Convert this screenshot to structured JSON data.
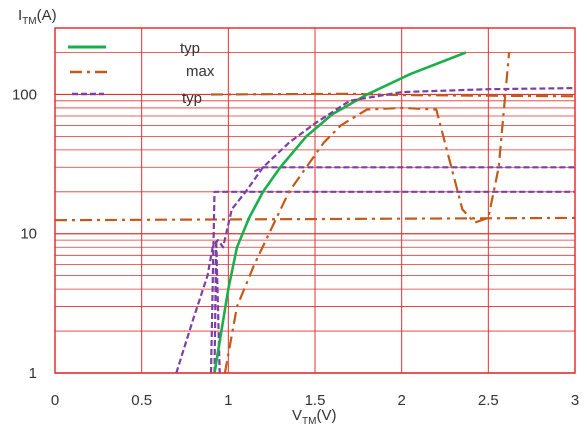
{
  "chart_data": {
    "type": "line",
    "xlabel": {
      "main": "V",
      "sub": "TM",
      "unit": "(V)"
    },
    "ylabel": {
      "main": "I",
      "sub": "TM",
      "unit": "(A)"
    },
    "xlim": [
      0,
      3
    ],
    "ylim": [
      1,
      300
    ],
    "yscale": "log",
    "grid": true,
    "x_ticks": [
      0,
      0.5,
      1,
      1.5,
      2,
      2.5,
      3
    ],
    "x_tick_labels": [
      "0",
      "0.5",
      "1",
      "1.5",
      "2",
      "2.5",
      "3"
    ],
    "y_ticks": [
      1,
      10,
      100
    ],
    "y_tick_labels": [
      "1",
      "10",
      "100"
    ],
    "legend_position": "top-left",
    "series": [
      {
        "name": "typ",
        "style": "solid",
        "color": "#1aaf4b",
        "x": [
          0.92,
          0.96,
          1.0,
          1.05,
          1.12,
          1.2,
          1.3,
          1.45,
          1.6,
          1.8,
          2.05,
          2.37
        ],
        "y": [
          1,
          2,
          4,
          8,
          13,
          20,
          30,
          50,
          72,
          100,
          140,
          200
        ]
      },
      {
        "name": "max",
        "style": "dashdot",
        "color": "#c25a1a",
        "x": [
          0.98,
          1.05,
          1.15,
          1.25,
          1.35,
          1.45,
          1.55,
          1.65,
          1.8,
          2.0,
          2.2,
          2.35,
          2.42,
          2.5,
          2.56,
          2.62
        ],
        "y": [
          1,
          3,
          6,
          11,
          20,
          30,
          45,
          60,
          78,
          80,
          78,
          15,
          12,
          13,
          30,
          200
        ]
      },
      {
        "name": "typ",
        "style": "dashed",
        "color": "#7b3fa6",
        "x": [
          0.7,
          0.8,
          0.88,
          0.91,
          0.94,
          0.97,
          1.02,
          1.1,
          1.2,
          1.35,
          1.5,
          1.7,
          2.0,
          2.5,
          3.0
        ],
        "y": [
          1,
          2.5,
          5,
          8,
          9,
          8,
          15,
          20,
          30,
          45,
          62,
          90,
          104,
          109,
          111
        ]
      }
    ],
    "reference_lines": [
      {
        "color": "#c25a1a",
        "style": "dashdot",
        "x": [
          0,
          3
        ],
        "y": [
          12.5,
          13
        ]
      },
      {
        "color": "#c25a1a",
        "style": "dashdot",
        "x": [
          0.9,
          1.7,
          2.0,
          3.0
        ],
        "y": [
          100,
          101,
          99,
          97
        ]
      },
      {
        "color": "#7b3fa6",
        "style": "dashed",
        "x": [
          0.9,
          0.92,
          3.0
        ],
        "y": [
          1,
          20,
          20
        ]
      },
      {
        "color": "#7b3fa6",
        "style": "dashed",
        "x": [
          1.15,
          1.2,
          3.0
        ],
        "y": [
          28,
          30,
          30
        ]
      },
      {
        "color": "#7b3fa6",
        "style": "dashed",
        "x": [
          0.92,
          0.93,
          0.95
        ],
        "y": [
          1,
          9,
          1
        ]
      }
    ]
  }
}
